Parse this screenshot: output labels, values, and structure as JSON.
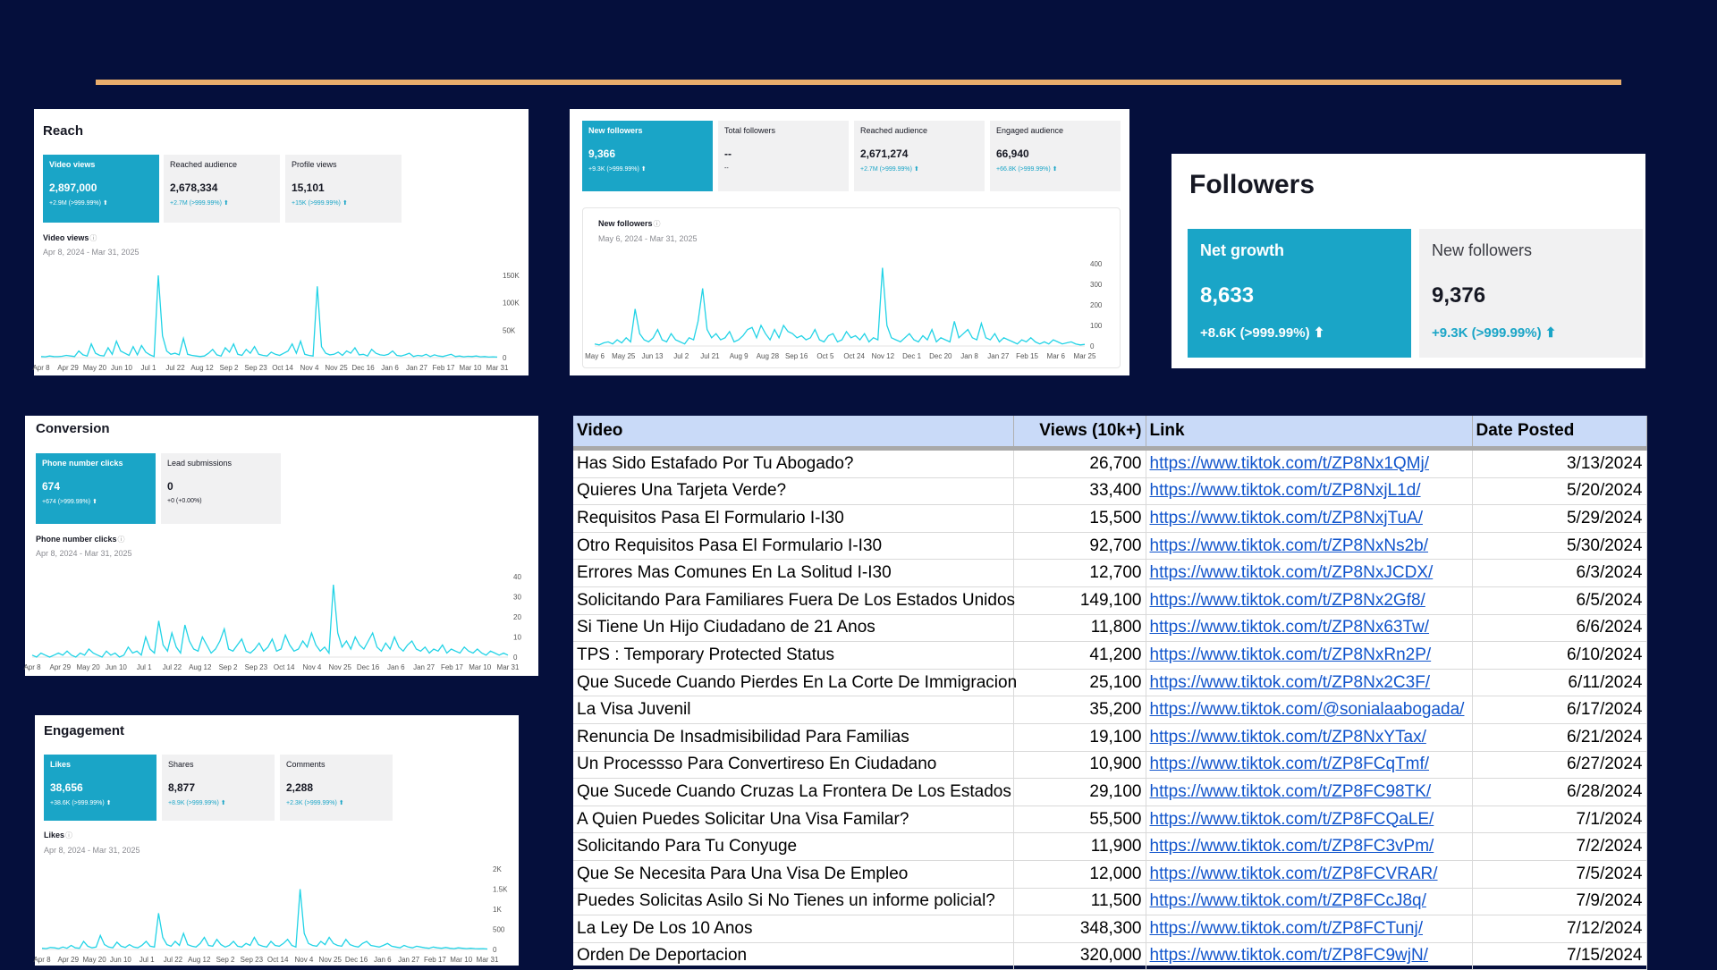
{
  "colors": {
    "background": "#050f3c",
    "accent_line": "#e9ad6c",
    "active_tile": "#1aa5c7",
    "chart_line": "#22d3e6",
    "header_row": "#c9daf8",
    "link": "#1155cc"
  },
  "reach": {
    "title": "Reach",
    "tiles": [
      {
        "label": "Video views",
        "value": "2,897,000",
        "delta": "+2.9M (>999.99%) ⬆"
      },
      {
        "label": "Reached audience",
        "value": "2,678,334",
        "delta": "+2.7M (>999.99%) ⬆"
      },
      {
        "label": "Profile views",
        "value": "15,101",
        "delta": "+15K (>999.99%) ⬆"
      }
    ],
    "chart_title": "Video views",
    "date_range": "Apr 8, 2024 - Mar 31, 2025",
    "chart_data": {
      "type": "line",
      "x_ticks": [
        "Apr 8",
        "Apr 29",
        "May 20",
        "Jun 10",
        "Jul 1",
        "Jul 22",
        "Aug 12",
        "Sep 2",
        "Sep 23",
        "Oct 14",
        "Nov 4",
        "Nov 25",
        "Dec 16",
        "Jan 6",
        "Jan 27",
        "Feb 17",
        "Mar 10",
        "Mar 31"
      ],
      "y_ticks": [
        "150K",
        "100K",
        "50K",
        "0"
      ],
      "ylim": [
        0,
        150000
      ],
      "values": [
        2000,
        1500,
        3000,
        2000,
        1800,
        2500,
        4000,
        3000,
        2000,
        12000,
        5000,
        3000,
        25000,
        8000,
        4000,
        3000,
        18000,
        6000,
        30000,
        12000,
        8000,
        4000,
        20000,
        5000,
        22000,
        10000,
        5000,
        2000,
        150000,
        40000,
        12000,
        6000,
        8000,
        5000,
        35000,
        6000,
        4000,
        3000,
        2000,
        3000,
        8000,
        15000,
        5000,
        3000,
        18000,
        10000,
        25000,
        6000,
        4000,
        15000,
        8000,
        20000,
        6000,
        4000,
        3000,
        10000,
        6000,
        4000,
        8000,
        12000,
        25000,
        8000,
        30000,
        6000,
        4000,
        3000,
        130000,
        20000,
        8000,
        5000,
        6000,
        10000,
        4000,
        12000,
        8000,
        18000,
        5000,
        6000,
        3000,
        15000,
        8000,
        5000,
        4000,
        6000,
        12000,
        4000,
        3000,
        5000,
        8000,
        2000,
        4000,
        3000,
        6000,
        2000,
        5000,
        3000,
        2000,
        4000,
        6000,
        2000,
        3000,
        1500,
        2500,
        2000,
        3000,
        1500,
        2000,
        1000,
        1500,
        1000
      ]
    }
  },
  "followers_mini": {
    "tiles": [
      {
        "label": "New followers",
        "value": "9,366",
        "delta": "+9.3K (>999.99%) ⬆"
      },
      {
        "label": "Total followers",
        "value": "--",
        "delta": "--"
      },
      {
        "label": "Reached audience",
        "value": "2,671,274",
        "delta": "+2.7M (>999.99%) ⬆"
      },
      {
        "label": "Engaged audience",
        "value": "66,940",
        "delta": "+66.8K (>999.99%) ⬆"
      }
    ],
    "chart_title": "New followers",
    "date_range": "May 6, 2024 - Mar 31, 2025",
    "chart_data": {
      "type": "line",
      "x_ticks": [
        "May 6",
        "May 25",
        "Jun 13",
        "Jul 2",
        "Jul 21",
        "Aug 9",
        "Aug 28",
        "Sep 16",
        "Oct 5",
        "Oct 24",
        "Nov 12",
        "Dec 1",
        "Dec 20",
        "Jan 8",
        "Jan 27",
        "Feb 15",
        "Mar 6",
        "Mar 25"
      ],
      "y_ticks": [
        "400",
        "300",
        "200",
        "100",
        "0"
      ],
      "ylim": [
        0,
        400
      ],
      "values": [
        10,
        5,
        15,
        20,
        10,
        30,
        15,
        40,
        20,
        180,
        60,
        30,
        20,
        40,
        80,
        30,
        20,
        60,
        30,
        20,
        10,
        40,
        30,
        120,
        280,
        80,
        40,
        60,
        30,
        40,
        70,
        20,
        30,
        50,
        80,
        90,
        40,
        100,
        60,
        30,
        80,
        40,
        100,
        70,
        60,
        40,
        50,
        30,
        40,
        80,
        30,
        20,
        50,
        60,
        20,
        30,
        70,
        40,
        50,
        30,
        60,
        20,
        40,
        30,
        380,
        100,
        40,
        30,
        20,
        40,
        60,
        30,
        20,
        50,
        30,
        80,
        20,
        40,
        30,
        20,
        120,
        40,
        60,
        80,
        40,
        30,
        110,
        40,
        30,
        60,
        20,
        40,
        30,
        20,
        10,
        30,
        20,
        40,
        20,
        10,
        20,
        10,
        30,
        20,
        10,
        15,
        20,
        10,
        5,
        8
      ]
    }
  },
  "followers_card": {
    "title": "Followers",
    "tiles": [
      {
        "label": "Net growth",
        "value": "8,633",
        "delta": "+8.6K (>999.99%) ⬆"
      },
      {
        "label": "New followers",
        "value": "9,376",
        "delta": "+9.3K (>999.99%) ⬆"
      }
    ]
  },
  "conversion": {
    "title": "Conversion",
    "tiles": [
      {
        "label": "Phone number clicks",
        "value": "674",
        "delta": "+674 (>999.99%) ⬆"
      },
      {
        "label": "Lead submissions",
        "value": "0",
        "delta": "+0 (+0.00%)"
      }
    ],
    "chart_title": "Phone number clicks",
    "date_range": "Apr 8, 2024 - Mar 31, 2025",
    "chart_data": {
      "type": "line",
      "x_ticks": [
        "Apr 8",
        "Apr 29",
        "May 20",
        "Jun 10",
        "Jul 1",
        "Jul 22",
        "Aug 12",
        "Sep 2",
        "Sep 23",
        "Oct 14",
        "Nov 4",
        "Nov 25",
        "Dec 16",
        "Jan 6",
        "Jan 27",
        "Feb 17",
        "Mar 10",
        "Mar 31"
      ],
      "y_ticks": [
        "40",
        "30",
        "20",
        "10",
        "0"
      ],
      "ylim": [
        0,
        40
      ],
      "values": [
        1,
        0,
        2,
        1,
        0,
        1,
        2,
        1,
        3,
        1,
        0,
        2,
        1,
        4,
        2,
        1,
        0,
        3,
        1,
        2,
        0,
        1,
        5,
        2,
        3,
        1,
        10,
        4,
        2,
        18,
        6,
        3,
        12,
        5,
        2,
        16,
        8,
        4,
        3,
        10,
        6,
        2,
        4,
        8,
        14,
        4,
        3,
        6,
        9,
        3,
        2,
        4,
        7,
        3,
        5,
        9,
        3,
        4,
        11,
        6,
        3,
        4,
        8,
        5,
        12,
        6,
        3,
        5,
        2,
        36,
        12,
        5,
        8,
        4,
        10,
        6,
        4,
        8,
        12,
        5,
        3,
        7,
        4,
        10,
        5,
        3,
        6,
        8,
        4,
        3,
        5,
        2,
        4,
        3,
        6,
        2,
        4,
        3,
        2,
        5,
        3,
        2,
        4,
        2,
        1,
        3,
        2,
        1,
        2,
        1
      ]
    }
  },
  "engagement": {
    "title": "Engagement",
    "tiles": [
      {
        "label": "Likes",
        "value": "38,656",
        "delta": "+38.6K (>999.99%) ⬆"
      },
      {
        "label": "Shares",
        "value": "8,877",
        "delta": "+8.9K (>999.99%) ⬆"
      },
      {
        "label": "Comments",
        "value": "2,288",
        "delta": "+2.3K (>999.99%) ⬆"
      }
    ],
    "chart_title": "Likes",
    "date_range": "Apr 8, 2024 - Mar 31, 2025",
    "chart_data": {
      "type": "line",
      "x_ticks": [
        "Apr 8",
        "Apr 29",
        "May 20",
        "Jun 10",
        "Jul 1",
        "Jul 22",
        "Aug 12",
        "Sep 2",
        "Sep 23",
        "Oct 14",
        "Nov 4",
        "Nov 25",
        "Dec 16",
        "Jan 6",
        "Jan 27",
        "Feb 17",
        "Mar 10",
        "Mar 31"
      ],
      "y_ticks": [
        "2K",
        "1.5K",
        "1K",
        "500",
        "0"
      ],
      "ylim": [
        0,
        2000
      ],
      "values": [
        30,
        20,
        50,
        40,
        20,
        60,
        30,
        100,
        40,
        30,
        200,
        80,
        40,
        60,
        350,
        120,
        60,
        40,
        180,
        80,
        50,
        120,
        60,
        40,
        100,
        200,
        80,
        60,
        900,
        300,
        120,
        80,
        200,
        100,
        400,
        120,
        80,
        60,
        150,
        300,
        100,
        80,
        250,
        120,
        60,
        100,
        200,
        80,
        60,
        150,
        100,
        300,
        120,
        80,
        60,
        200,
        100,
        80,
        150,
        250,
        100,
        60,
        1500,
        400,
        150,
        100,
        80,
        200,
        120,
        300,
        150,
        100,
        80,
        250,
        120,
        80,
        60,
        150,
        200,
        100,
        80,
        60,
        100,
        150,
        80,
        60,
        40,
        100,
        60,
        40,
        80,
        60,
        40,
        30,
        60,
        40,
        30,
        50,
        30,
        20,
        40,
        30,
        20,
        30,
        20,
        15,
        20,
        10
      ]
    }
  },
  "sheet": {
    "headers": [
      "Video",
      "Views (10k+)",
      "Link",
      "Date Posted"
    ],
    "rows": [
      [
        "Has Sido Estafado Por Tu Abogado?",
        "26,700",
        "https://www.tiktok.com/t/ZP8Nx1QMj/",
        "3/13/2024"
      ],
      [
        "Quieres Una Tarjeta Verde?",
        "33,400",
        "https://www.tiktok.com/t/ZP8NxjL1d/",
        "5/20/2024"
      ],
      [
        "Requisitos Pasa El Formulario I-I30",
        "15,500",
        "https://www.tiktok.com/t/ZP8NxjTuA/",
        "5/29/2024"
      ],
      [
        "Otro Requisitos Pasa El Formulario I-I30",
        "92,700",
        "https://www.tiktok.com/t/ZP8NxNs2b/",
        "5/30/2024"
      ],
      [
        "Errores Mas Comunes En La Solitud  I-I30",
        "12,700",
        "https://www.tiktok.com/t/ZP8NxJCDX/",
        "6/3/2024"
      ],
      [
        "Solicitando Para Familiares Fuera De Los Estados Unidos",
        "149,100",
        "https://www.tiktok.com/t/ZP8Nx2Gf8/",
        "6/5/2024"
      ],
      [
        "Si Tiene Un Hijo Ciudadano de 21 Anos",
        "11,800",
        "https://www.tiktok.com/t/ZP8Nx63Tw/",
        "6/6/2024"
      ],
      [
        "TPS : Temporary Protected Status",
        "41,200",
        "https://www.tiktok.com/t/ZP8NxRn2P/",
        "6/10/2024"
      ],
      [
        "Que Sucede Cuando Pierdes En La Corte De Immigracion",
        "25,100",
        "https://www.tiktok.com/t/ZP8Nx2C3F/",
        "6/11/2024"
      ],
      [
        "La Visa Juvenil",
        "35,200",
        "https://www.tiktok.com/@sonialaabogada/",
        "6/17/2024"
      ],
      [
        "Renuncia De Insadmisibilidad Para Familias",
        "19,100",
        "https://www.tiktok.com/t/ZP8NxYTax/",
        "6/21/2024"
      ],
      [
        "Un Processso Para Convertireso En Ciudadano",
        "10,900",
        "https://www.tiktok.com/t/ZP8FCqTmf/",
        "6/27/2024"
      ],
      [
        "Que Sucede Cuando Cruzas La Frontera De Los Estados",
        "29,100",
        "https://www.tiktok.com/t/ZP8FC98TK/",
        "6/28/2024"
      ],
      [
        "A Quien Puedes Solicitar Una Visa Familar?",
        "55,500",
        "https://www.tiktok.com/t/ZP8FCQaLE/",
        "7/1/2024"
      ],
      [
        "Solicitando Para Tu Conyuge",
        "11,900",
        "https://www.tiktok.com/t/ZP8FC3vPm/",
        "7/2/2024"
      ],
      [
        "Que Se Necesita Para Una Visa De Empleo",
        "12,000",
        "https://www.tiktok.com/t/ZP8FCVRAR/",
        "7/5/2024"
      ],
      [
        "Puedes Solicitas Asilo Si No Tienes un informe policial?",
        "11,500",
        "https://www.tiktok.com/t/ZP8FCcJ8q/",
        "7/9/2024"
      ],
      [
        "La Ley De Los 10 Anos",
        "348,300",
        "https://www.tiktok.com/t/ZP8FCTunj/",
        "7/12/2024"
      ],
      [
        "Orden De Deportacion",
        "320,000",
        "https://www.tiktok.com/t/ZP8FC9wjN/",
        "7/15/2024"
      ]
    ]
  }
}
